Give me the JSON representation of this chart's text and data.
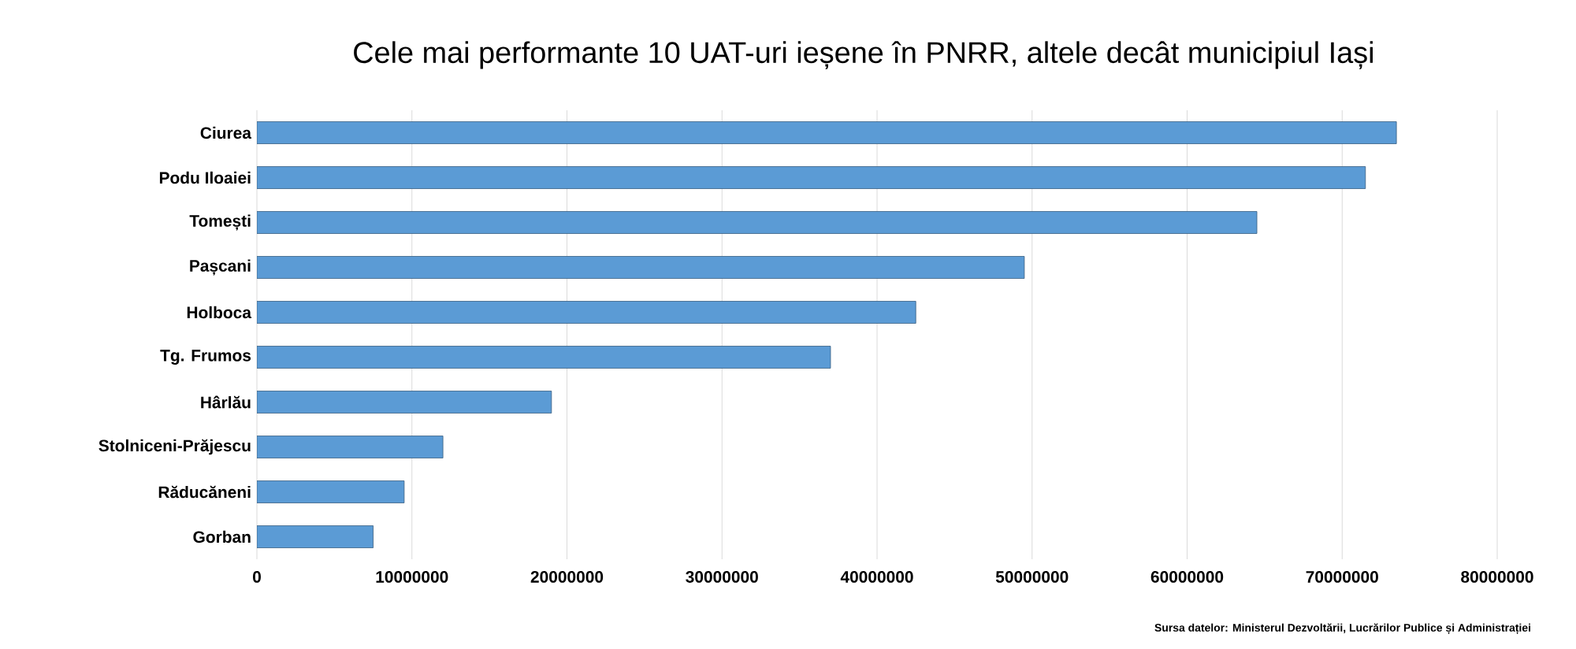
{
  "chart_data": {
    "type": "bar",
    "orientation": "horizontal",
    "title": "Cele mai performante 10 UAT-uri ieșene în PNRR, altele decât municipiul Iași",
    "categories": [
      "Ciurea",
      "Podu Iloaiei",
      "Tomești",
      "Pașcani",
      "Holboca",
      "Tg. Frumos",
      "Hârlău",
      "Stolniceni-Prăjescu",
      "Răducăneni",
      "Gorban"
    ],
    "values": [
      73500000,
      71500000,
      64500000,
      49500000,
      42500000,
      37000000,
      19000000,
      12000000,
      9500000,
      7500000
    ],
    "color": "#5b9bd5",
    "xlim": [
      0,
      80000000
    ],
    "xticks": [
      0,
      10000000,
      20000000,
      30000000,
      40000000,
      50000000,
      60000000,
      70000000,
      80000000
    ],
    "grid": "x",
    "annotations": [
      "Sursa datelor: Ministerul Dezvoltării, Lucrărilor Publice și Administrației"
    ]
  }
}
